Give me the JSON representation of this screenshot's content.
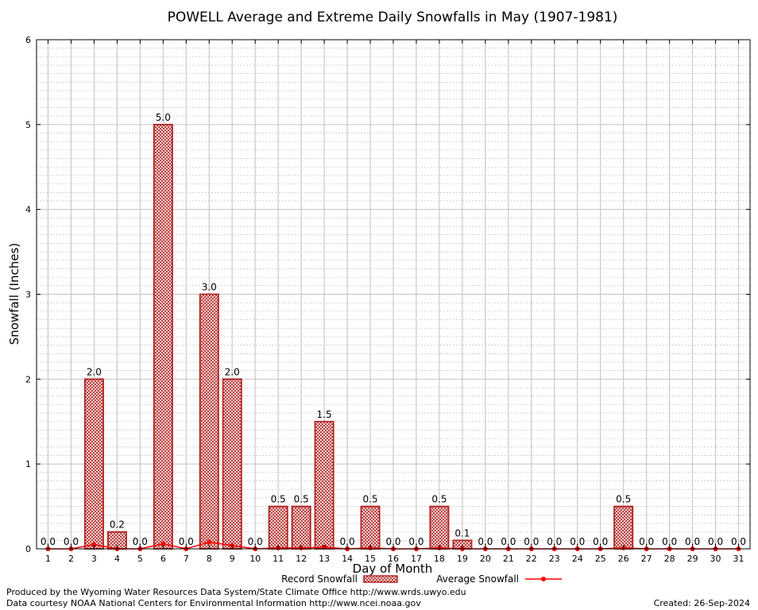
{
  "chart_data": {
    "type": "bar",
    "title": "POWELL Average and Extreme Daily Snowfalls in May (1907-1981)",
    "xlabel": "Day of Month",
    "ylabel": "Snowfall (Inches)",
    "ylim": [
      0,
      6
    ],
    "yticks": [
      "0",
      "1",
      "2",
      "3",
      "4",
      "5",
      "6"
    ],
    "categories": [
      "1",
      "2",
      "3",
      "4",
      "5",
      "6",
      "7",
      "8",
      "9",
      "10",
      "11",
      "12",
      "13",
      "14",
      "15",
      "16",
      "17",
      "18",
      "19",
      "20",
      "21",
      "22",
      "23",
      "24",
      "25",
      "26",
      "27",
      "28",
      "29",
      "30",
      "31"
    ],
    "series": [
      {
        "name": "Record Snowfall",
        "type": "bar",
        "color": "#b22222",
        "values": [
          0.0,
          0.0,
          2.0,
          0.2,
          0.0,
          5.0,
          0.0,
          3.0,
          2.0,
          0.0,
          0.5,
          0.5,
          1.5,
          0.0,
          0.5,
          0.0,
          0.0,
          0.5,
          0.1,
          0.0,
          0.0,
          0.0,
          0.0,
          0.0,
          0.0,
          0.5,
          0.0,
          0.0,
          0.0,
          0.0,
          0.0
        ],
        "labels": [
          "0.0",
          "0.0",
          "2.0",
          "0.2",
          "0.0",
          "5.0",
          "0.0",
          "3.0",
          "2.0",
          "0.0",
          "0.5",
          "0.5",
          "1.5",
          "0.0",
          "0.5",
          "0.0",
          "0.0",
          "0.5",
          "0.1",
          "0.0",
          "0.0",
          "0.0",
          "0.0",
          "0.0",
          "0.0",
          "0.5",
          "0.0",
          "0.0",
          "0.0",
          "0.0",
          "0.0"
        ]
      },
      {
        "name": "Average Snowfall",
        "type": "line",
        "color": "#ff0000",
        "values": [
          0.0,
          0.0,
          0.05,
          0.0,
          0.0,
          0.06,
          0.0,
          0.08,
          0.04,
          0.0,
          0.01,
          0.01,
          0.02,
          0.0,
          0.01,
          0.0,
          0.0,
          0.01,
          0.0,
          0.0,
          0.0,
          0.0,
          0.0,
          0.0,
          0.0,
          0.01,
          0.0,
          0.0,
          0.0,
          0.0,
          0.0
        ]
      }
    ],
    "grid": true,
    "legend": "bottom"
  },
  "footer": {
    "line1": "Produced by the Wyoming Water Resources Data System/State Climate Office http://www.wrds.uwyo.edu",
    "line2": "Data courtesy NOAA National Centers for Environmental Information http://www.ncei.noaa.gov",
    "created": "Created: 26-Sep-2024"
  }
}
